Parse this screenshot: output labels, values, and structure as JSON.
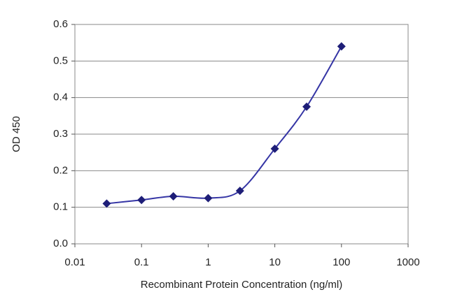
{
  "chart_data": {
    "type": "line",
    "x_label": "Recombinant  Protein Concentration (ng/ml)",
    "y_label": "OD 450",
    "x": [
      0.03,
      0.1,
      0.3,
      1,
      3,
      10,
      30,
      100
    ],
    "values": [
      0.11,
      0.12,
      0.13,
      0.125,
      0.145,
      0.26,
      0.375,
      0.54
    ],
    "color": "#3535a5",
    "marker_color": "#1e1e78",
    "x_log_scale": true,
    "xlim": [
      0.01,
      1000
    ],
    "xticks": [
      0.01,
      0.1,
      1,
      10,
      100,
      1000
    ],
    "ylim": [
      0,
      0.6
    ],
    "yticks": [
      {
        "value": 0,
        "label": "0.0"
      },
      0.1,
      0.2,
      0.3,
      0.4,
      0.5,
      0.6
    ],
    "grid": true
  }
}
